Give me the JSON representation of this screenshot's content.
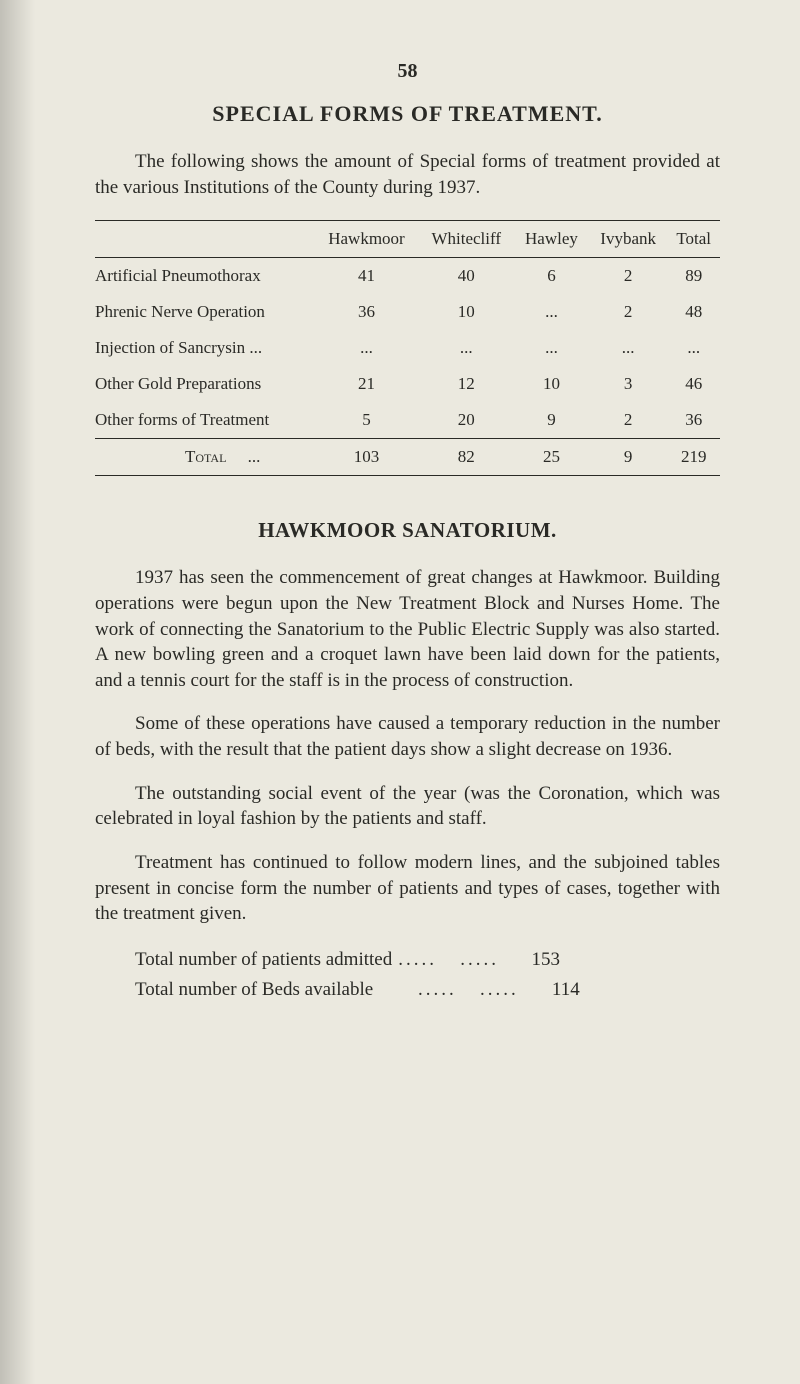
{
  "page_number": "58",
  "title": "SPECIAL FORMS OF TREATMENT.",
  "intro": "The following shows the amount of Special forms of treatment provided at the various Institutions of the County during 1937.",
  "table": {
    "columns": [
      "",
      "Hawkmoor",
      "Whitecliff",
      "Hawley",
      "Ivybank",
      "Total"
    ],
    "rows": [
      [
        "Artificial Pneumothorax",
        "41",
        "40",
        "6",
        "2",
        "89"
      ],
      [
        "Phrenic Nerve Operation",
        "36",
        "10",
        "...",
        "2",
        "48"
      ],
      [
        "Injection of Sancrysin ...",
        "...",
        "...",
        "...",
        "...",
        "..."
      ],
      [
        "Other Gold Preparations",
        "21",
        "12",
        "10",
        "3",
        "46"
      ],
      [
        "Other forms of Treatment",
        "5",
        "20",
        "9",
        "2",
        "36"
      ]
    ],
    "total_row": [
      "Total",
      "103",
      "82",
      "25",
      "9",
      "219"
    ]
  },
  "subtitle": "HAWKMOOR SANATORIUM.",
  "body1": "1937 has seen the commencement of great changes at Hawkmoor. Building operations were begun upon the New Treatment Block and Nurses Home. The work of connecting the Sanatorium to the Public Electric Supply was also started. A new bowling green and a croquet lawn have been laid down for the patients, and a tennis court for the staff is in the process of construction.",
  "body2": "Some of these operations have caused a temporary reduction in the number of beds, with the result that the patient days show a slight decrease on 1936.",
  "body3": "The outstanding social event of the year (was the Coronation, which was celebrated in loyal fashion by the patients and staff.",
  "body4": "Treatment has continued to follow modern lines, and the subjoined tables present in concise form the number of patients and types of cases, together with the treatment given.",
  "stats": [
    {
      "label": "Total number of patients admitted",
      "value": "153"
    },
    {
      "label": "Total number of Beds available",
      "value": "114"
    }
  ]
}
